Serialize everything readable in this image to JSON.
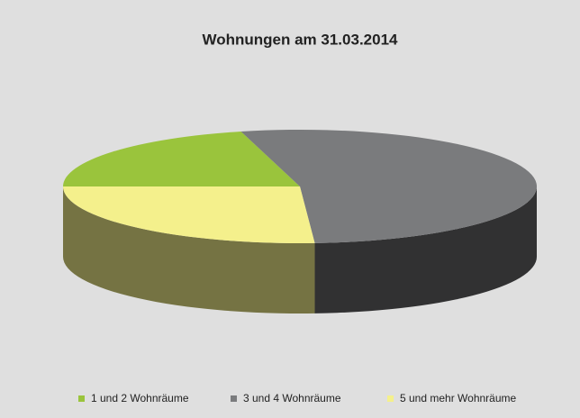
{
  "chart_data": {
    "type": "pie",
    "title": "Wohnungen am 31.03.2014",
    "categories": [
      "1 und 2 Wohnräume",
      "3 und 4 Wohnräume",
      "5 und mehr Wohnräume"
    ],
    "values": [
      21,
      53,
      26
    ],
    "colors": [
      "#9ac43c",
      "#7a7b7d",
      "#f4f08c"
    ],
    "legend": "bottom"
  }
}
